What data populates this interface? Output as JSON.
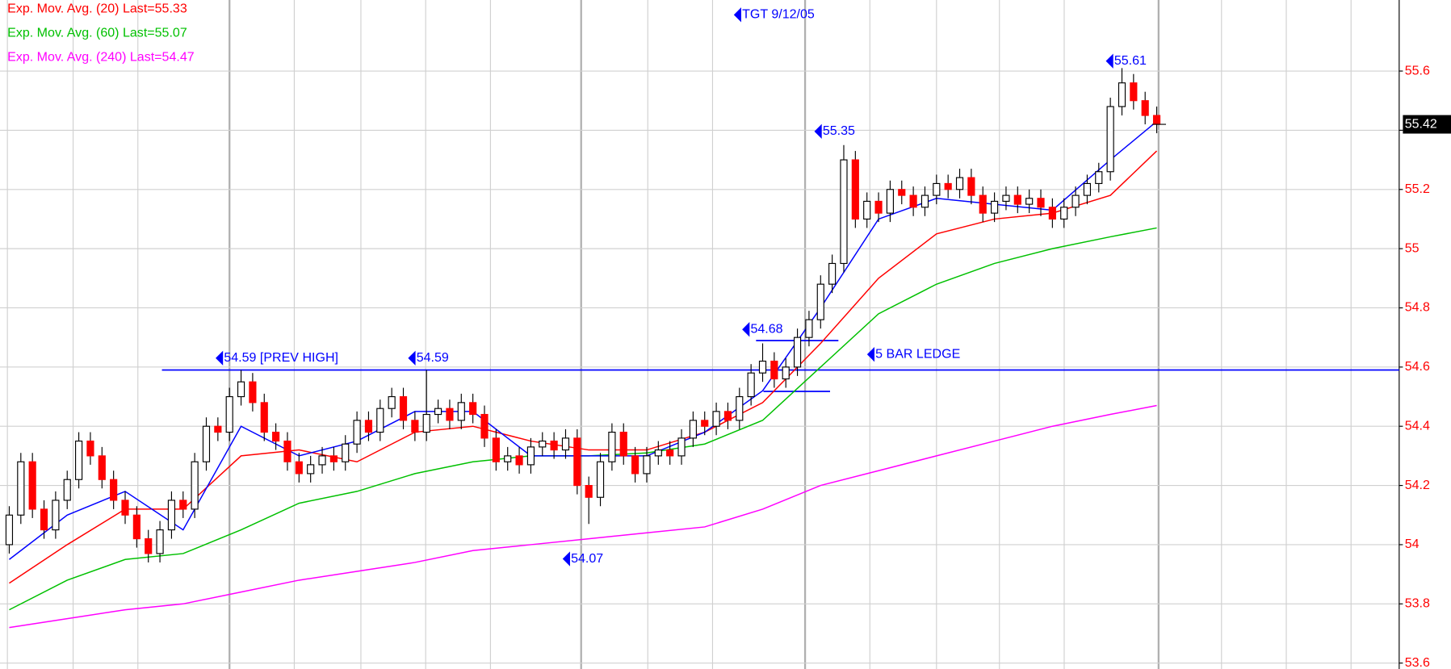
{
  "chart_data": {
    "type": "candlestick",
    "open": [
      54.0,
      54.1,
      54.28,
      54.12,
      54.05,
      54.15,
      54.22,
      54.35,
      54.3,
      54.22,
      54.15,
      54.1,
      54.02,
      53.97,
      54.05,
      54.15,
      54.12,
      54.28,
      54.4,
      54.38,
      54.5,
      54.55,
      54.48,
      54.38,
      54.35,
      54.28,
      54.24,
      54.27,
      54.3,
      54.28,
      54.34,
      54.42,
      54.38,
      54.46,
      54.5,
      54.42,
      54.38,
      54.44,
      54.46,
      54.42,
      54.48,
      54.44,
      54.36,
      54.28,
      54.3,
      54.27,
      54.33,
      54.35,
      54.32,
      54.36,
      54.2,
      54.16,
      54.28,
      54.38,
      54.3,
      54.24,
      54.3,
      54.32,
      54.3,
      54.36,
      54.42,
      54.4,
      54.45,
      54.42,
      54.5,
      54.58,
      54.62,
      54.56,
      54.6,
      54.7,
      54.76,
      54.88,
      54.95,
      55.3,
      55.1,
      55.16,
      55.12,
      55.2,
      55.18,
      55.14,
      55.18,
      55.22,
      55.2,
      55.24,
      55.18,
      55.12,
      55.16,
      55.18,
      55.15,
      55.17,
      55.14,
      55.1,
      55.14,
      55.18,
      55.22,
      55.26,
      55.48,
      55.56,
      55.5,
      55.45
    ],
    "high": [
      54.13,
      54.31,
      54.31,
      54.15,
      54.18,
      54.25,
      54.38,
      54.38,
      54.33,
      54.25,
      54.18,
      54.13,
      54.05,
      54.08,
      54.18,
      54.18,
      54.31,
      54.43,
      54.43,
      54.53,
      54.59,
      54.58,
      54.51,
      54.41,
      54.38,
      54.31,
      54.3,
      54.33,
      54.33,
      54.37,
      54.45,
      54.45,
      54.49,
      54.53,
      54.53,
      54.45,
      54.59,
      54.49,
      54.49,
      54.51,
      54.51,
      54.47,
      54.39,
      54.33,
      54.33,
      54.36,
      54.38,
      54.38,
      54.39,
      54.39,
      54.23,
      54.31,
      54.41,
      54.41,
      54.33,
      54.33,
      54.35,
      54.35,
      54.39,
      54.45,
      54.45,
      54.48,
      54.48,
      54.53,
      54.61,
      54.68,
      54.65,
      54.63,
      54.73,
      54.79,
      54.91,
      54.98,
      55.35,
      55.33,
      55.19,
      55.19,
      55.23,
      55.23,
      55.21,
      55.21,
      55.25,
      55.25,
      55.27,
      55.27,
      55.21,
      55.19,
      55.21,
      55.21,
      55.2,
      55.2,
      55.17,
      55.17,
      55.21,
      55.25,
      55.29,
      55.51,
      55.61,
      55.59,
      55.53,
      55.48
    ],
    "low": [
      53.97,
      54.07,
      54.09,
      54.02,
      54.02,
      54.12,
      54.19,
      54.27,
      54.19,
      54.12,
      54.07,
      53.99,
      53.94,
      53.94,
      54.02,
      54.09,
      54.09,
      54.25,
      54.35,
      54.35,
      54.47,
      54.45,
      54.35,
      54.32,
      54.25,
      54.21,
      54.21,
      54.24,
      54.25,
      54.25,
      54.31,
      54.35,
      54.35,
      54.43,
      54.39,
      54.35,
      54.35,
      54.41,
      54.39,
      54.39,
      54.41,
      54.33,
      54.25,
      54.25,
      54.24,
      54.24,
      54.3,
      54.29,
      54.29,
      54.17,
      54.07,
      54.13,
      54.25,
      54.27,
      54.21,
      54.21,
      54.27,
      54.27,
      54.27,
      54.33,
      54.37,
      54.37,
      54.39,
      54.39,
      54.47,
      54.55,
      54.53,
      54.53,
      54.57,
      54.67,
      54.73,
      54.85,
      54.92,
      55.07,
      55.07,
      55.09,
      55.09,
      55.15,
      55.11,
      55.11,
      55.15,
      55.17,
      55.17,
      55.15,
      55.09,
      55.09,
      55.13,
      55.12,
      55.12,
      55.11,
      55.07,
      55.07,
      55.11,
      55.15,
      55.19,
      55.23,
      55.45,
      55.47,
      55.42,
      55.39
    ],
    "close": [
      54.1,
      54.28,
      54.12,
      54.05,
      54.15,
      54.22,
      54.35,
      54.3,
      54.22,
      54.15,
      54.1,
      54.02,
      53.97,
      54.05,
      54.15,
      54.12,
      54.28,
      54.4,
      54.38,
      54.5,
      54.55,
      54.48,
      54.38,
      54.35,
      54.28,
      54.24,
      54.27,
      54.3,
      54.28,
      54.34,
      54.42,
      54.38,
      54.46,
      54.5,
      54.42,
      54.38,
      54.44,
      54.46,
      54.42,
      54.48,
      54.44,
      54.36,
      54.28,
      54.3,
      54.27,
      54.33,
      54.35,
      54.32,
      54.36,
      54.2,
      54.16,
      54.28,
      54.38,
      54.3,
      54.24,
      54.3,
      54.32,
      54.3,
      54.36,
      54.42,
      54.4,
      54.45,
      54.42,
      54.5,
      54.58,
      54.62,
      54.56,
      54.6,
      54.7,
      54.76,
      54.88,
      54.95,
      55.3,
      55.1,
      55.16,
      55.12,
      55.2,
      55.18,
      55.14,
      55.18,
      55.22,
      55.2,
      55.24,
      55.18,
      55.12,
      55.16,
      55.18,
      55.15,
      55.17,
      55.14,
      55.1,
      55.14,
      55.18,
      55.22,
      55.26,
      55.48,
      55.56,
      55.5,
      55.45,
      55.42
    ],
    "series": [
      {
        "name": "Exp. Mov. Avg. (20) Last=55.33",
        "color": "#ff0000",
        "x": [
          0,
          5,
          10,
          15,
          20,
          25,
          30,
          35,
          40,
          45,
          50,
          55,
          60,
          65,
          70,
          75,
          80,
          85,
          90,
          95,
          99
        ],
        "values": [
          53.87,
          54.0,
          54.12,
          54.12,
          54.3,
          54.32,
          54.28,
          54.38,
          54.4,
          54.35,
          54.32,
          54.32,
          54.38,
          54.48,
          54.68,
          54.9,
          55.05,
          55.1,
          55.12,
          55.18,
          55.33
        ]
      },
      {
        "name": "Exp. Mov. Avg. (60) Last=55.07",
        "color": "#00c000",
        "x": [
          0,
          5,
          10,
          15,
          20,
          25,
          30,
          35,
          40,
          45,
          50,
          55,
          60,
          65,
          70,
          75,
          80,
          85,
          90,
          95,
          99
        ],
        "values": [
          53.78,
          53.88,
          53.95,
          53.97,
          54.05,
          54.14,
          54.18,
          54.24,
          54.28,
          54.3,
          54.3,
          54.31,
          54.34,
          54.42,
          54.6,
          54.78,
          54.88,
          54.95,
          55.0,
          55.04,
          55.07
        ]
      },
      {
        "name": "Exp. Mov. Avg. (240) Last=54.47",
        "color": "#ff00ff",
        "x": [
          0,
          5,
          10,
          15,
          20,
          25,
          30,
          35,
          40,
          45,
          50,
          55,
          60,
          65,
          70,
          75,
          80,
          85,
          90,
          95,
          99
        ],
        "values": [
          53.72,
          53.75,
          53.78,
          53.8,
          53.84,
          53.88,
          53.91,
          53.94,
          53.98,
          54.0,
          54.02,
          54.04,
          54.06,
          54.12,
          54.2,
          54.25,
          54.3,
          54.35,
          54.4,
          54.44,
          54.47
        ]
      },
      {
        "color": "#0000ff",
        "x": [
          0,
          5,
          10,
          15,
          20,
          25,
          30,
          35,
          40,
          45,
          50,
          55,
          60,
          65,
          70,
          75,
          80,
          85,
          90,
          95,
          99
        ],
        "values": [
          53.95,
          54.1,
          54.18,
          54.05,
          54.4,
          54.3,
          54.35,
          54.45,
          54.45,
          54.3,
          54.3,
          54.3,
          54.38,
          54.52,
          54.8,
          55.1,
          55.17,
          55.15,
          55.13,
          55.3,
          55.43
        ]
      }
    ],
    "annotations": [
      "TGT  9/12/05",
      "55.61",
      "55.35",
      "54.59 [PREV HIGH]",
      "54.59",
      "54.68",
      "5 BAR LEDGE",
      "54.07"
    ],
    "reference_line": 54.59,
    "last": 55.42,
    "ylim": [
      53.58,
      55.84
    ],
    "yticks": [
      53.6,
      53.8,
      54,
      54.2,
      54.4,
      54.6,
      54.8,
      55,
      55.2,
      55.4,
      55.6
    ],
    "grid": true
  }
}
